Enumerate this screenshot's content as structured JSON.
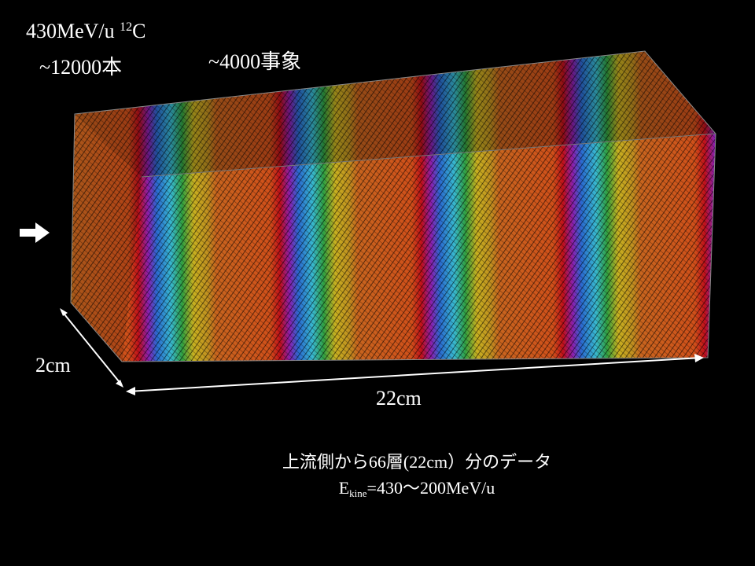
{
  "labels": {
    "beam": {
      "energy": "430MeV/u",
      "mass_number": "12",
      "element": "C"
    },
    "tracks": "~12000本",
    "events": "~4000事象",
    "width": "2cm",
    "length": "22cm"
  },
  "caption": {
    "line1": "上流側から66層(22cm）分のデータ",
    "line2": {
      "symbol": "E",
      "subscript": "kine",
      "rest": "=430～200MeV/u"
    }
  }
}
